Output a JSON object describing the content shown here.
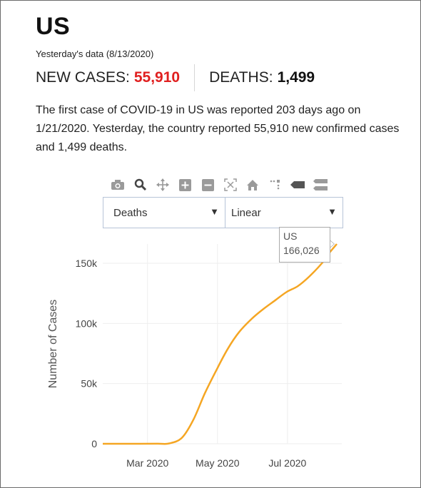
{
  "page": {
    "title": "US",
    "subtitle": "Yesterday's data (8/13/2020)",
    "stats": {
      "new_cases_label": "NEW CASES:",
      "new_cases_value": "55,910",
      "deaths_label": "DEATHS:",
      "deaths_value": "1,499"
    },
    "description": "The first case of COVID-19 in US was reported 203 days ago on 1/21/2020. Yesterday, the country reported 55,910 new confirmed cases and 1,499 deaths.",
    "colors": {
      "accent_red": "#e02020",
      "line": "#f5a623",
      "grid": "#eeeeee",
      "axis_text": "#444444"
    }
  },
  "modebar": {
    "icons": [
      "camera-icon",
      "zoom-icon",
      "pan-icon",
      "zoom-in-icon",
      "zoom-out-icon",
      "autoscale-icon",
      "home-icon",
      "spike-lines-icon",
      "hover-closest-icon",
      "hover-compare-icon"
    ]
  },
  "controls": {
    "metric_selected": "Deaths",
    "scale_selected": "Linear",
    "dropdown_arrow": "▼"
  },
  "tooltip": {
    "series": "US",
    "value": "166,026"
  },
  "chart_data": {
    "type": "line",
    "title": "",
    "xlabel": "",
    "ylabel": "Number of Cases",
    "ylim": [
      0,
      166026
    ],
    "y_ticks": [
      0,
      50000,
      100000,
      150000
    ],
    "y_tick_labels": [
      "0",
      "50k",
      "100k",
      "150k"
    ],
    "x_ticks": [
      "2020-03-01",
      "2020-05-01",
      "2020-07-01"
    ],
    "x_tick_labels": [
      "Mar 2020",
      "May 2020",
      "Jul 2020"
    ],
    "grid": true,
    "series": [
      {
        "name": "US",
        "x": [
          "2020-01-22",
          "2020-02-15",
          "2020-03-10",
          "2020-03-20",
          "2020-03-31",
          "2020-04-10",
          "2020-04-20",
          "2020-05-01",
          "2020-05-10",
          "2020-05-20",
          "2020-05-31",
          "2020-06-10",
          "2020-06-20",
          "2020-06-30",
          "2020-07-10",
          "2020-07-20",
          "2020-07-31",
          "2020-08-06",
          "2020-08-13"
        ],
        "y": [
          0,
          0,
          30,
          300,
          5000,
          20000,
          42000,
          63000,
          79000,
          93000,
          104000,
          112000,
          119000,
          126000,
          131000,
          139000,
          150000,
          158000,
          166026
        ]
      }
    ]
  }
}
